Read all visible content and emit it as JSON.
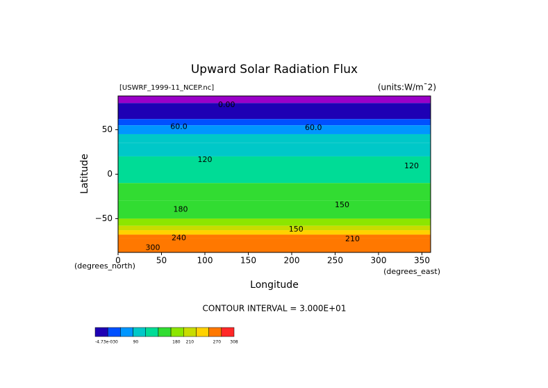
{
  "chart_data": {
    "type": "contour",
    "title": "Upward Solar Radiation Flux",
    "subtitle": "[USWRF_1999-11_NCEP.nc]",
    "units": "(units:W/m¯2)",
    "xlabel": "Longitude",
    "ylabel": "Latitude",
    "xunit": "(degrees_east)",
    "yunit": "(degrees_north)",
    "note": "CONTOUR INTERVAL = 3.000E+01",
    "xlim": [
      0,
      360
    ],
    "xticks": [
      0,
      50,
      100,
      150,
      200,
      250,
      300,
      350
    ],
    "ylim": [
      -88,
      88
    ],
    "yticks": [
      50,
      0,
      {
        "value": -50,
        "label": "−50"
      }
    ],
    "lat_edges": [
      88,
      80,
      62,
      55,
      45,
      35,
      20,
      -10,
      -30,
      -50,
      -58,
      -63,
      -68,
      -72,
      -88
    ],
    "values": [
      null,
      20,
      45,
      70,
      95,
      115,
      140,
      160,
      175,
      195,
      225,
      255,
      275,
      295
    ],
    "null_color": "#9a00c8",
    "levels": [
      0,
      30,
      60,
      90,
      120,
      150,
      180,
      210,
      240,
      270,
      300
    ],
    "colors": [
      "#1e00b4",
      "#0050ff",
      "#0096ff",
      "#00c8c8",
      "#00dc96",
      "#32dc32",
      "#8ce600",
      "#c8dc00",
      "#ffd200",
      "#ff7800",
      "#ff2828"
    ],
    "colorbar_ticks": [
      {
        "value": -4.73e-30,
        "label": "-4.73e-030"
      },
      90,
      180,
      210,
      270,
      308
    ],
    "contour_labels": [
      {
        "text": "0.00",
        "lon": 125,
        "lat": 78
      },
      {
        "text": "60.0",
        "lon": 70,
        "lat": 53
      },
      {
        "text": "60.0",
        "lon": 225,
        "lat": 52
      },
      {
        "text": "120",
        "lon": 100,
        "lat": 16
      },
      {
        "text": "120",
        "lon": 338,
        "lat": 9
      },
      {
        "text": "180",
        "lon": 72,
        "lat": -40
      },
      {
        "text": "150",
        "lon": 258,
        "lat": -35
      },
      {
        "text": "150",
        "lon": 205,
        "lat": -62
      },
      {
        "text": "240",
        "lon": 70,
        "lat": -72
      },
      {
        "text": "300",
        "lon": 40,
        "lat": -83
      },
      {
        "text": "210",
        "lon": 270,
        "lat": -73
      }
    ]
  }
}
